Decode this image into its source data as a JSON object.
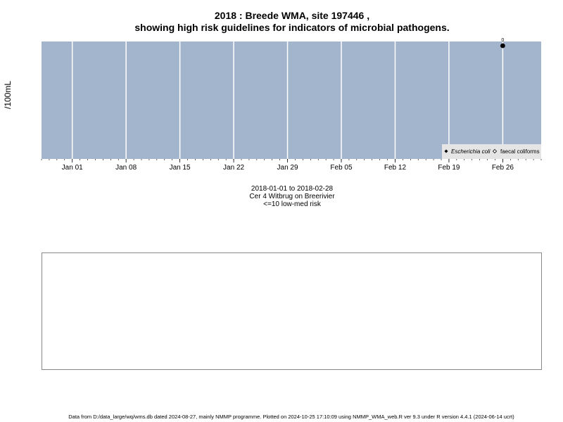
{
  "title": {
    "line1": "2018 : Breede WMA, site 197446 ,",
    "line2": "showing high risk guidelines for indicators of microbial pathogens."
  },
  "ylabel": "/100mL",
  "colors": {
    "panel_background": "#a2b5cd",
    "grid": "#ffffff",
    "point": "#000000",
    "legend_background": "#e5e5e5"
  },
  "chart_data": {
    "type": "scatter",
    "title": "2018 : Breede WMA, site 197446 , showing high risk guidelines for indicators of microbial pathogens.",
    "xlabel": "",
    "ylabel": "/100mL",
    "x_axis": {
      "type": "date",
      "range": [
        "2017-12-28",
        "2018-03-03"
      ],
      "tick_dates": [
        "2018-01-01",
        "2018-01-08",
        "2018-01-15",
        "2018-01-22",
        "2018-01-29",
        "2018-02-05",
        "2018-02-12",
        "2018-02-19",
        "2018-02-26"
      ],
      "tick_labels": [
        "Jan 01",
        "Jan 08",
        "Jan 15",
        "Jan 22",
        "Jan 29",
        "Feb 05",
        "Feb 12",
        "Feb 19",
        "Feb 26"
      ]
    },
    "grid": true,
    "legend_position": "bottom-right",
    "series": [
      {
        "name": "Escherichia coli",
        "marker": "filled-diamond",
        "points": [
          {
            "x": "2018-02-26",
            "y": 0,
            "label": "0"
          }
        ]
      },
      {
        "name": "faecal coliforms",
        "marker": "open-diamond",
        "points": []
      }
    ]
  },
  "captions": {
    "date_range": "2018-01-01 to 2018-02-28",
    "site_name": "Cer 4 Witbrug on Breerivier",
    "risk": "<=10 low-med risk"
  },
  "footer": "Data from D:/data_large/wq/wms.db dated 2024-08-27, mainly NMMP programme. Plotted on 2024-10-25 17:10:09 using NMMP_WMA_web.R ver 9.3 under R version 4.4.1 (2024-06-14 ucrt)"
}
